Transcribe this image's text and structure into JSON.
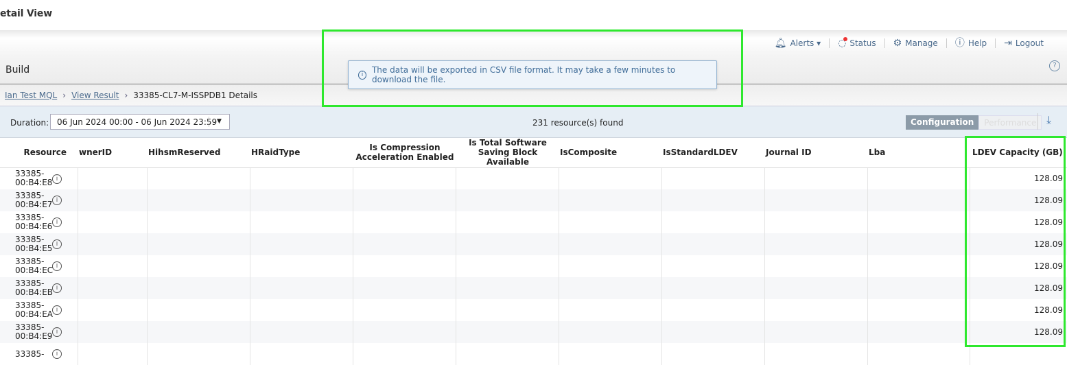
{
  "title": "etail View",
  "topnav": [
    {
      "icon": "bell-icon",
      "label": "Alerts ▾"
    },
    {
      "icon": "status-icon",
      "label": "Status"
    },
    {
      "icon": "gear-icon",
      "label": "Manage"
    },
    {
      "icon": "help-icon",
      "label": "Help"
    },
    {
      "icon": "logout-icon",
      "label": "Logout"
    }
  ],
  "section": "Build",
  "breadcrumb": {
    "items": [
      "Ian Test MQL",
      "View Result"
    ],
    "current": "33385-CL7-M-ISSPDB1 Details"
  },
  "filter": {
    "duration_label": "Duration:",
    "duration_value": "06 Jun 2024 00:00 - 06 Jun 2024 23:59",
    "found": "231 resource(s) found",
    "tabs": [
      "Configuration",
      "Performance"
    ]
  },
  "toast": "The data will be exported in CSV file format. It may take a few minutes to download the file.",
  "table": {
    "columns": [
      "Resource",
      "wnerID",
      "HihsmReserved",
      "HRaidType",
      "Is Compression Acceleration Enabled",
      "Is Total Software Saving Block Available",
      "IsComposite",
      "IsStandardLDEV",
      "Journal ID",
      "Lba",
      "LDEV Capacity (GB)"
    ],
    "rows": [
      {
        "resource": "33385-\n00:B4:E8",
        "cap": "128.09"
      },
      {
        "resource": "33385-\n00:B4:E7",
        "cap": "128.09"
      },
      {
        "resource": "33385-\n00:B4:E6",
        "cap": "128.09"
      },
      {
        "resource": "33385-\n00:B4:E5",
        "cap": "128.09"
      },
      {
        "resource": "33385-\n00:B4:EC",
        "cap": "128.09"
      },
      {
        "resource": "33385-\n00:B4:EB",
        "cap": "128.09"
      },
      {
        "resource": "33385-\n00:B4:EA",
        "cap": "128.09"
      },
      {
        "resource": "33385-\n00:B4:E9",
        "cap": "128.09"
      },
      {
        "resource": "33385-",
        "cap": ""
      }
    ]
  },
  "colors": {
    "highlight": "#2ee82e",
    "link": "#4a6a8c",
    "toast_bg": "#eef4fa"
  }
}
